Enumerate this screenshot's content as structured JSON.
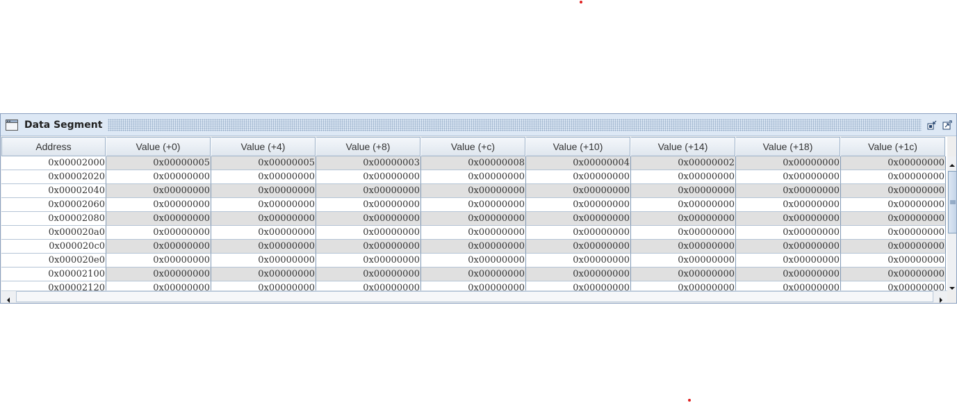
{
  "window": {
    "title": "Data Segment",
    "accent_color": "#dde8f5",
    "icon": "window-icon",
    "controls": [
      "minimize-icon",
      "maximize-icon"
    ]
  },
  "table": {
    "columns": [
      "Address",
      "Value (+0)",
      "Value (+4)",
      "Value (+8)",
      "Value (+c)",
      "Value (+10)",
      "Value (+14)",
      "Value (+18)",
      "Value (+1c)"
    ],
    "rows": [
      [
        "0x00002000",
        "0x00000005",
        "0x00000005",
        "0x00000003",
        "0x00000008",
        "0x00000004",
        "0x00000002",
        "0x00000000",
        "0x00000000"
      ],
      [
        "0x00002020",
        "0x00000000",
        "0x00000000",
        "0x00000000",
        "0x00000000",
        "0x00000000",
        "0x00000000",
        "0x00000000",
        "0x00000000"
      ],
      [
        "0x00002040",
        "0x00000000",
        "0x00000000",
        "0x00000000",
        "0x00000000",
        "0x00000000",
        "0x00000000",
        "0x00000000",
        "0x00000000"
      ],
      [
        "0x00002060",
        "0x00000000",
        "0x00000000",
        "0x00000000",
        "0x00000000",
        "0x00000000",
        "0x00000000",
        "0x00000000",
        "0x00000000"
      ],
      [
        "0x00002080",
        "0x00000000",
        "0x00000000",
        "0x00000000",
        "0x00000000",
        "0x00000000",
        "0x00000000",
        "0x00000000",
        "0x00000000"
      ],
      [
        "0x000020a0",
        "0x00000000",
        "0x00000000",
        "0x00000000",
        "0x00000000",
        "0x00000000",
        "0x00000000",
        "0x00000000",
        "0x00000000"
      ],
      [
        "0x000020c0",
        "0x00000000",
        "0x00000000",
        "0x00000000",
        "0x00000000",
        "0x00000000",
        "0x00000000",
        "0x00000000",
        "0x00000000"
      ],
      [
        "0x000020e0",
        "0x00000000",
        "0x00000000",
        "0x00000000",
        "0x00000000",
        "0x00000000",
        "0x00000000",
        "0x00000000",
        "0x00000000"
      ],
      [
        "0x00002100",
        "0x00000000",
        "0x00000000",
        "0x00000000",
        "0x00000000",
        "0x00000000",
        "0x00000000",
        "0x00000000",
        "0x00000000"
      ],
      [
        "0x00002120",
        "0x00000000",
        "0x00000000",
        "0x00000000",
        "0x00000000",
        "0x00000000",
        "0x00000000",
        "0x00000000",
        "0x00000000"
      ]
    ],
    "shaded_color": "#e0e0e0"
  },
  "scrollbars": {
    "vertical_icons": [
      "scroll-up-arrow-icon",
      "scroll-down-arrow-icon"
    ],
    "horizontal_icons": [
      "scroll-left-arrow-icon",
      "scroll-right-arrow-icon"
    ]
  }
}
